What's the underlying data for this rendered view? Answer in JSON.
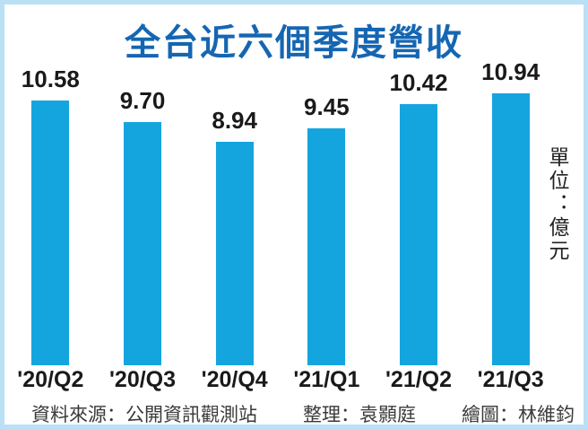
{
  "title": "全台近六個季度營收",
  "unit_label": "單位：億元",
  "footer": {
    "source": "資料來源：公開資訊觀測站",
    "editor": "整理：袁顥庭",
    "illustrator": "繪圖：林維鈞"
  },
  "colors": {
    "bar": "#14a5df",
    "title": "#1566b2",
    "border": "#b9e0f5",
    "label": "#1a1a1a",
    "footer_text": "#3a3a3a"
  },
  "chart_data": {
    "type": "bar",
    "title": "全台近六個季度營收",
    "categories": [
      "'20/Q2",
      "'20/Q3",
      "'20/Q4",
      "'21/Q1",
      "'21/Q2",
      "'21/Q3"
    ],
    "values": [
      10.58,
      9.7,
      8.94,
      9.45,
      10.42,
      10.94
    ],
    "value_labels": [
      "10.58",
      "9.70",
      "8.94",
      "9.45",
      "10.42",
      "10.94"
    ],
    "xlabel": "",
    "ylabel": "單位：億元",
    "ylim": [
      0,
      11.5
    ],
    "grid": false,
    "legend": false,
    "bar_color": "#14a5df"
  }
}
